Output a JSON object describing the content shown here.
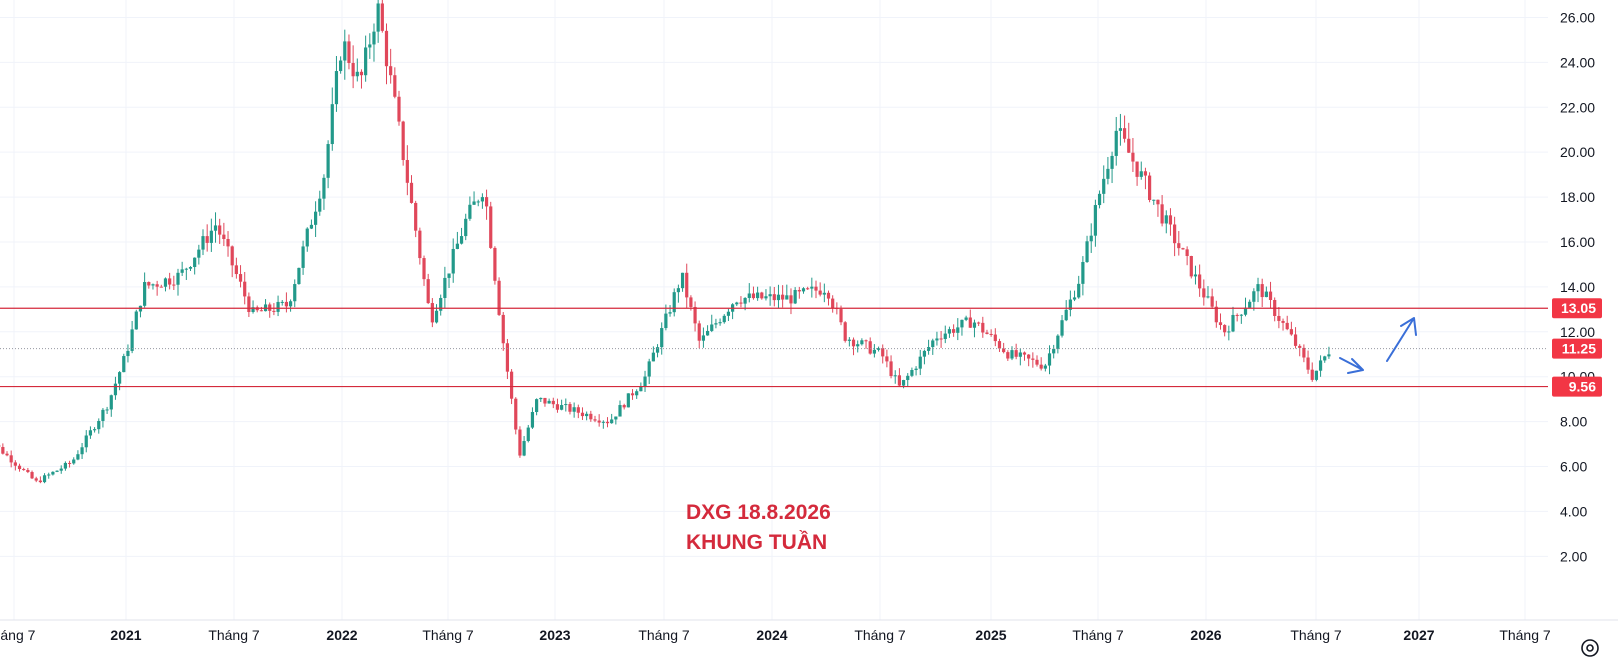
{
  "chart_data": {
    "type": "candlestick",
    "y_axis": {
      "range": [
        0.5,
        26.6
      ],
      "ticks": [
        "2.00",
        "4.00",
        "6.00",
        "8.00",
        "10.00",
        "12.00",
        "14.00",
        "16.00",
        "18.00",
        "20.00",
        "22.00",
        "24.00",
        "26.00"
      ],
      "position": "right",
      "grid": true
    },
    "x_axis": {
      "ticks": [
        {
          "label": "háng 7",
          "bold": false
        },
        {
          "label": "2021",
          "bold": true
        },
        {
          "label": "Tháng 7",
          "bold": false
        },
        {
          "label": "2022",
          "bold": true
        },
        {
          "label": "Tháng 7",
          "bold": false
        },
        {
          "label": "2023",
          "bold": true
        },
        {
          "label": "Tháng 7",
          "bold": false
        },
        {
          "label": "2024",
          "bold": true
        },
        {
          "label": "Tháng 7",
          "bold": false
        },
        {
          "label": "2025",
          "bold": true
        },
        {
          "label": "Tháng 7",
          "bold": false
        },
        {
          "label": "2026",
          "bold": true
        },
        {
          "label": "Tháng 7",
          "bold": false
        },
        {
          "label": "2027",
          "bold": true
        },
        {
          "label": "Tháng 7",
          "bold": false
        }
      ],
      "grid": true
    },
    "price_path": [
      {
        "t": "2020-05",
        "close": 7.5
      },
      {
        "t": "2020-08",
        "close": 5.3
      },
      {
        "t": "2020-10",
        "close": 6.2
      },
      {
        "t": "2020-12",
        "close": 8.8
      },
      {
        "t": "2021-01",
        "close": 11.0
      },
      {
        "t": "2021-02",
        "close": 14.0
      },
      {
        "t": "2021-04",
        "close": 14.5
      },
      {
        "t": "2021-06",
        "close": 16.8
      },
      {
        "t": "2021-08",
        "close": 12.8
      },
      {
        "t": "2021-10",
        "close": 13.2
      },
      {
        "t": "2021-12",
        "close": 19.0
      },
      {
        "t": "2022-01",
        "close": 25.0
      },
      {
        "t": "2022-02",
        "close": 23.0
      },
      {
        "t": "2022-03",
        "close": 26.5
      },
      {
        "t": "2022-04",
        "close": 22.0
      },
      {
        "t": "2022-06",
        "close": 12.5
      },
      {
        "t": "2022-08",
        "close": 17.0
      },
      {
        "t": "2022-09",
        "close": 18.5
      },
      {
        "t": "2022-10",
        "close": 12.0
      },
      {
        "t": "2022-11",
        "close": 6.5
      },
      {
        "t": "2022-12",
        "close": 9.0
      },
      {
        "t": "2023-02",
        "close": 8.5
      },
      {
        "t": "2023-04",
        "close": 8.0
      },
      {
        "t": "2023-06",
        "close": 10.0
      },
      {
        "t": "2023-08",
        "close": 14.5
      },
      {
        "t": "2023-09",
        "close": 11.5
      },
      {
        "t": "2023-11",
        "close": 13.5
      },
      {
        "t": "2024-02",
        "close": 13.5
      },
      {
        "t": "2024-04",
        "close": 14.0
      },
      {
        "t": "2024-05",
        "close": 11.8
      },
      {
        "t": "2024-07",
        "close": 11.0
      },
      {
        "t": "2024-08",
        "close": 9.5
      },
      {
        "t": "2024-10",
        "close": 11.8
      },
      {
        "t": "2024-12",
        "close": 12.5
      },
      {
        "t": "2025-02",
        "close": 11.0
      },
      {
        "t": "2025-04",
        "close": 10.5
      },
      {
        "t": "2025-06",
        "close": 14.5
      },
      {
        "t": "2025-07",
        "close": 18.0
      },
      {
        "t": "2025-08",
        "close": 21.0
      },
      {
        "t": "2025-10",
        "close": 18.0
      },
      {
        "t": "2025-12",
        "close": 15.0
      },
      {
        "t": "2026-02",
        "close": 12.0
      },
      {
        "t": "2026-04",
        "close": 14.0
      },
      {
        "t": "2026-06",
        "close": 11.5
      },
      {
        "t": "2026-07",
        "close": 10.0
      },
      {
        "t": "2026-08",
        "close": 11.25
      }
    ],
    "horizontal_levels": [
      {
        "value": 13.05,
        "label": "13.05"
      },
      {
        "value": 9.56,
        "label": "9.56"
      }
    ],
    "last_price": {
      "value": 11.25,
      "label": "11.25"
    },
    "annotations": [
      "DXG 18.8.2026",
      "KHUNG TUẦN"
    ],
    "colors": {
      "up": "#22998a",
      "down": "#e0475a",
      "level": "#d42a3c",
      "badge": "#f23645",
      "arrow": "#3a6fd8",
      "grid": "#f0f3fa",
      "text": "#131722"
    }
  },
  "toolbar": {
    "settings_icon": "gear-icon"
  }
}
